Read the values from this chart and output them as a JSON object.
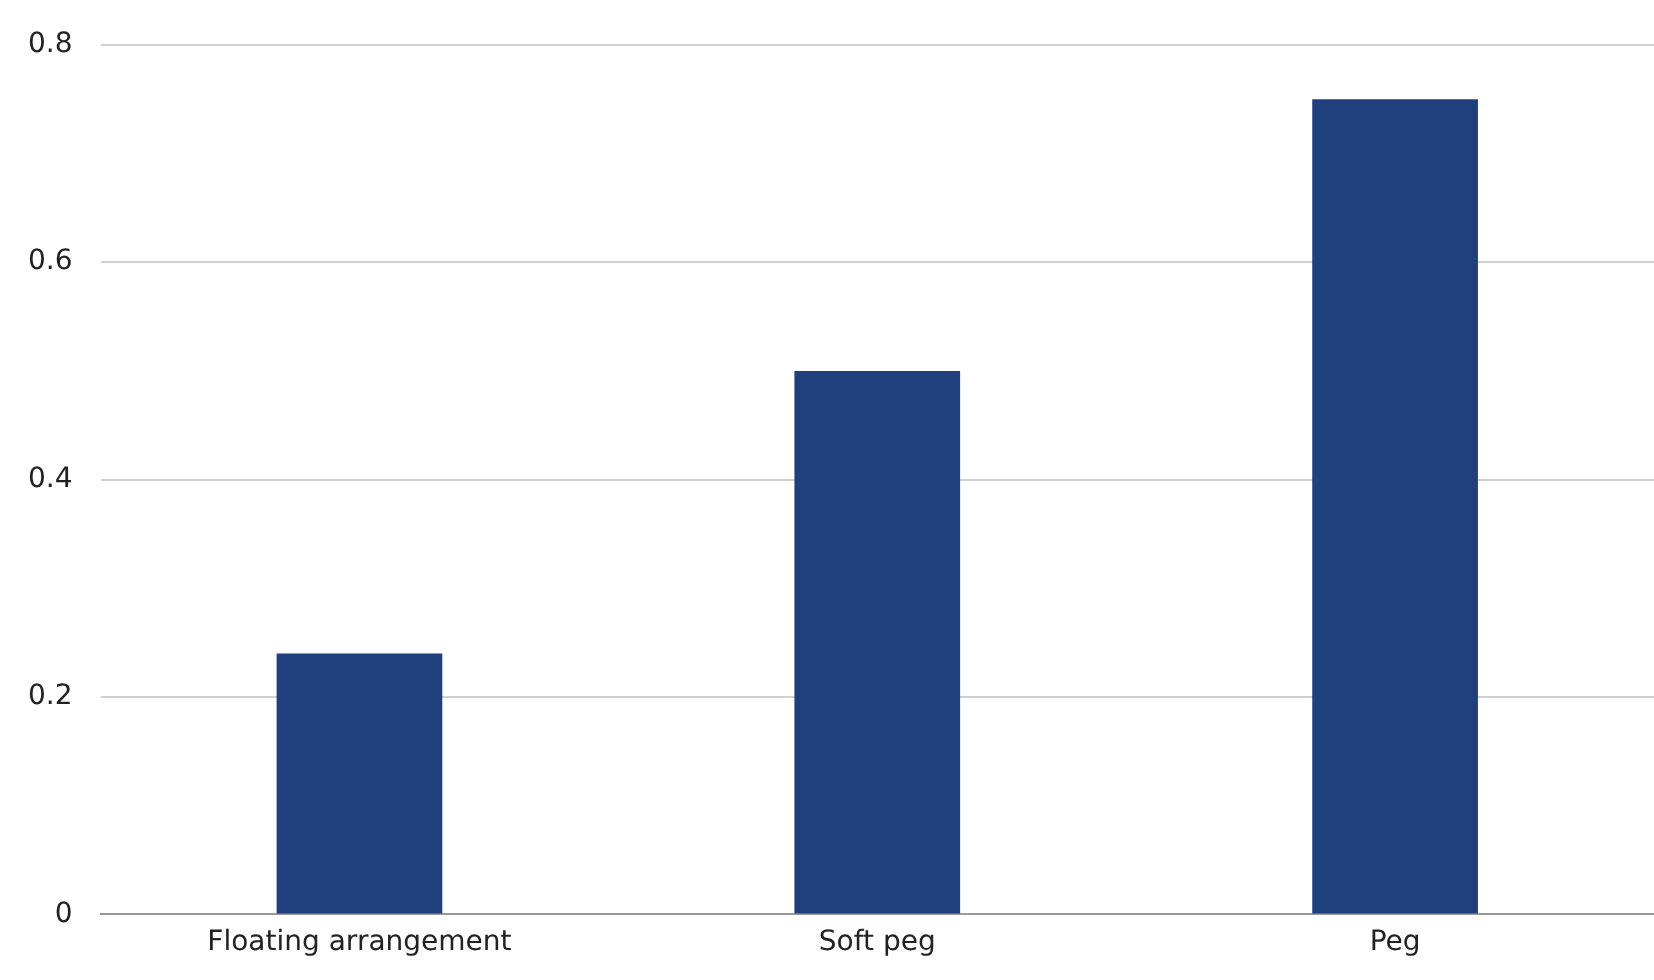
{
  "chart_data": {
    "type": "bar",
    "categories": [
      "Floating arrangement",
      "Soft peg",
      "Peg"
    ],
    "values": [
      0.24,
      0.5,
      0.75
    ],
    "color": "#1f3f7d",
    "ylim": [
      0,
      0.8
    ],
    "yticks": [
      0,
      0.2,
      0.4,
      0.6,
      0.8
    ],
    "grid": "y"
  }
}
